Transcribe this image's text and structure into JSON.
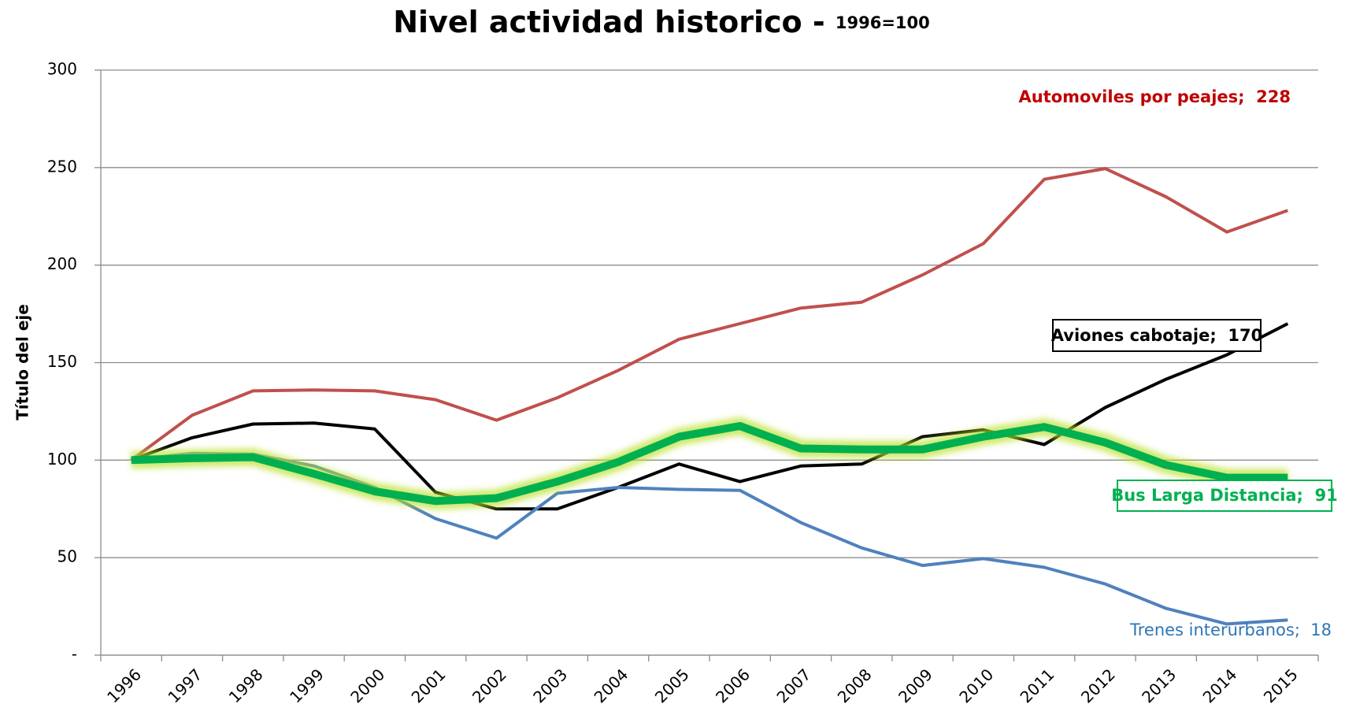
{
  "chart_data": {
    "type": "line",
    "title": "Nivel actividad historico - ",
    "subtitle": "1996=100",
    "y_label": "Título del eje",
    "categories": [
      "1996",
      "1997",
      "1998",
      "1999",
      "2000",
      "2001",
      "2002",
      "2003",
      "2004",
      "2005",
      "2006",
      "2007",
      "2008",
      "2009",
      "2010",
      "2011",
      "2012",
      "2013",
      "2014",
      "2015"
    ],
    "ylim": [
      0,
      300
    ],
    "yticks": [
      {
        "value": 0,
        "label": "-"
      },
      50,
      100,
      150,
      200,
      250,
      300
    ],
    "grid": true,
    "series": [
      {
        "name": "Automoviles por peajes",
        "color": "#c0504d",
        "label_color": "#c00000",
        "values": [
          100,
          123,
          135.5,
          136,
          135.5,
          131,
          120.5,
          132,
          146,
          162,
          170,
          178,
          181,
          195,
          211,
          244,
          249.5,
          235,
          217,
          228
        ],
        "value_labels": [
          null,
          null,
          null,
          null,
          null,
          null,
          null,
          null,
          null,
          null,
          null,
          null,
          null,
          null,
          null,
          null,
          null,
          null,
          null,
          ";  228"
        ]
      },
      {
        "name": "Aviones cabotaje",
        "color": "#000000",
        "label_color": "#000000",
        "values": [
          100,
          111.5,
          118.5,
          119,
          116,
          83.5,
          75,
          75,
          86,
          98,
          89,
          97,
          98,
          112,
          115.5,
          108,
          127,
          141.5,
          154,
          170
        ],
        "value_labels": [
          null,
          null,
          null,
          null,
          null,
          null,
          null,
          null,
          null,
          null,
          null,
          null,
          null,
          null,
          null,
          null,
          null,
          null,
          null,
          ";  170"
        ]
      },
      {
        "name": "Trenes interurbanos",
        "color": "#4f81bd",
        "label_color": "#2e75b6",
        "values": [
          100,
          103.5,
          103,
          97,
          86,
          70,
          60,
          83,
          86,
          85,
          84.5,
          68,
          55,
          46,
          49.5,
          45,
          36.5,
          24,
          16,
          18
        ],
        "value_labels": [
          null,
          null,
          null,
          null,
          null,
          null,
          null,
          null,
          null,
          null,
          null,
          null,
          null,
          null,
          null,
          null,
          null,
          null,
          null,
          ";  18"
        ]
      },
      {
        "name": "Bus Larga Distancia",
        "color": "#00b050",
        "label_color": "#00b050",
        "values": [
          100,
          101,
          101.5,
          93,
          84,
          79,
          80.5,
          89,
          99,
          112,
          117.5,
          106,
          105.5,
          105.5,
          112,
          117,
          109,
          97.5,
          91,
          91
        ],
        "value_labels": [
          null,
          null,
          null,
          null,
          null,
          null,
          null,
          null,
          null,
          null,
          null,
          null,
          null,
          null,
          null,
          null,
          null,
          null,
          null,
          ";  91"
        ]
      }
    ]
  }
}
